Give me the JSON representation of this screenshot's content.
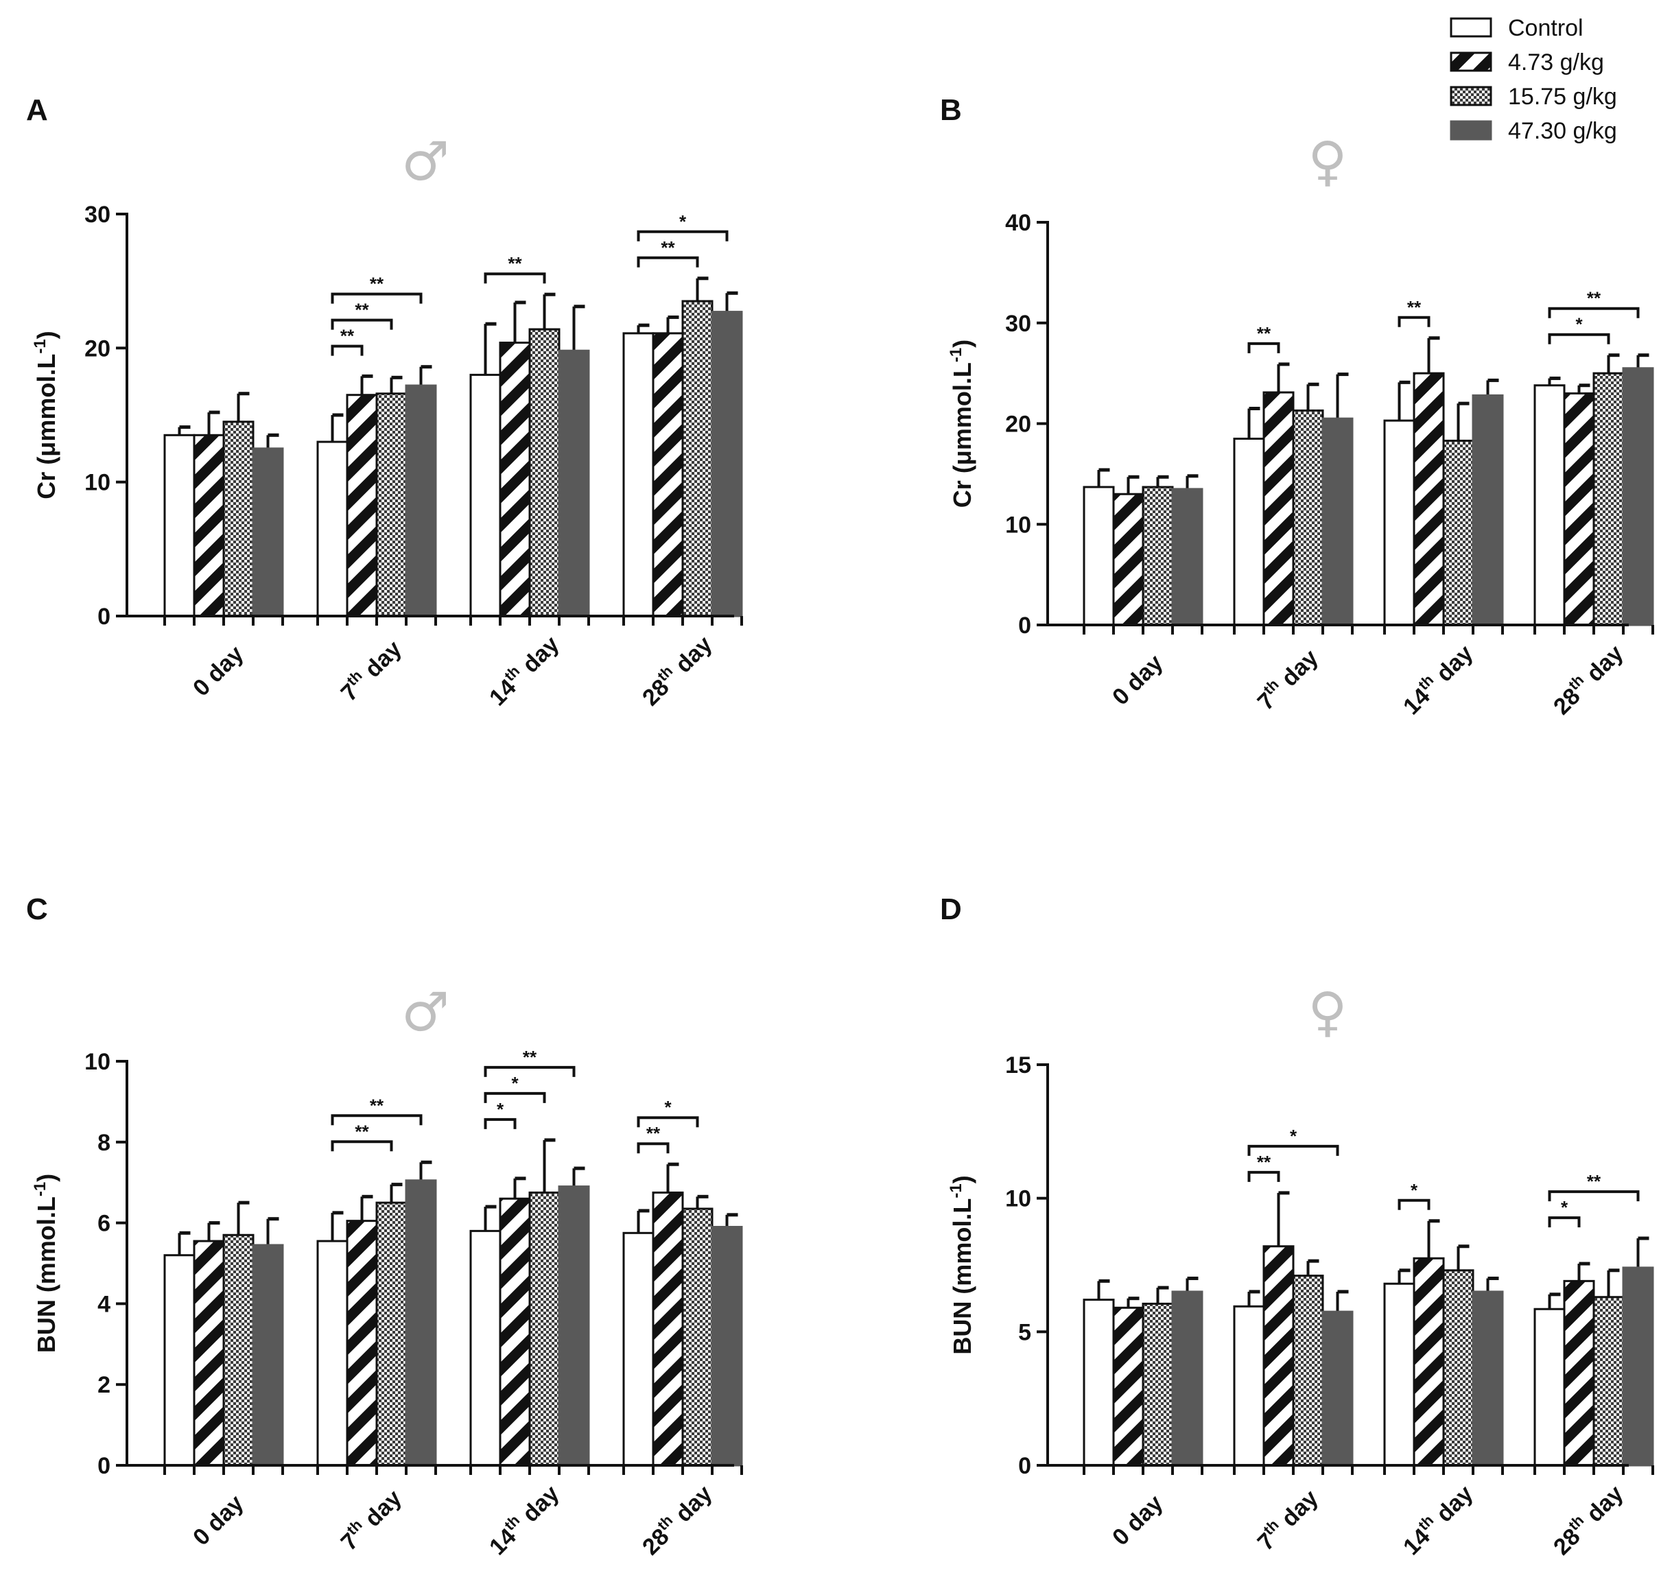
{
  "legend": [
    "Control",
    "4.73 g/kg",
    "15.75 g/kg",
    "47.30 g/kg"
  ],
  "chart_data": [
    {
      "panel": "A",
      "sex_symbol": "♂",
      "type": "bar",
      "ylabel": "Cr (μmmol.L",
      "ylabel_sup": "-1",
      "ylabel_end": ")",
      "ylim": [
        0,
        30
      ],
      "yticks": [
        0,
        10,
        20,
        30
      ],
      "categories": [
        {
          "main": "0 day",
          "sup": "",
          "tail": ""
        },
        {
          "main": "7",
          "sup": "th",
          "tail": " day"
        },
        {
          "main": "14",
          "sup": "th",
          "tail": " day"
        },
        {
          "main": "28",
          "sup": "th",
          "tail": " day"
        }
      ],
      "series": [
        {
          "name": "Control",
          "values": [
            13.5,
            13.0,
            18.0,
            21.1
          ],
          "errors": [
            0.6,
            2.0,
            3.8,
            0.6
          ]
        },
        {
          "name": "4.73 g/kg",
          "values": [
            13.5,
            16.5,
            20.4,
            21.1
          ],
          "errors": [
            1.7,
            1.4,
            3.0,
            1.2
          ]
        },
        {
          "name": "15.75 g/kg",
          "values": [
            14.5,
            16.6,
            21.4,
            23.5
          ],
          "errors": [
            2.1,
            1.2,
            2.6,
            1.7
          ]
        },
        {
          "name": "47.30 g/kg",
          "values": [
            12.5,
            17.2,
            19.8,
            22.7
          ],
          "errors": [
            1.0,
            1.4,
            3.3,
            1.4
          ]
        }
      ],
      "significance": [
        {
          "group": 1,
          "from": 0,
          "to": 1,
          "label": "**"
        },
        {
          "group": 1,
          "from": 0,
          "to": 2,
          "label": "**"
        },
        {
          "group": 1,
          "from": 0,
          "to": 3,
          "label": "**"
        },
        {
          "group": 2,
          "from": 0,
          "to": 2,
          "label": "**"
        },
        {
          "group": 3,
          "from": 0,
          "to": 2,
          "label": "**"
        },
        {
          "group": 3,
          "from": 0,
          "to": 3,
          "label": "*"
        }
      ]
    },
    {
      "panel": "B",
      "sex_symbol": "♀",
      "type": "bar",
      "ylabel": "Cr (μmmol.L",
      "ylabel_sup": "-1",
      "ylabel_end": ")",
      "ylim": [
        0,
        40
      ],
      "yticks": [
        0,
        10,
        20,
        30,
        40
      ],
      "categories": [
        {
          "main": "0 day",
          "sup": "",
          "tail": ""
        },
        {
          "main": "7",
          "sup": "th",
          "tail": " day"
        },
        {
          "main": "14",
          "sup": "th",
          "tail": " day"
        },
        {
          "main": "28",
          "sup": "th",
          "tail": " day"
        }
      ],
      "series": [
        {
          "name": "Control",
          "values": [
            13.7,
            18.5,
            20.3,
            23.8
          ],
          "errors": [
            1.7,
            3.0,
            3.8,
            0.7
          ]
        },
        {
          "name": "4.73 g/kg",
          "values": [
            13.0,
            23.1,
            25.0,
            23.0
          ],
          "errors": [
            1.7,
            2.8,
            3.5,
            0.8
          ]
        },
        {
          "name": "15.75 g/kg",
          "values": [
            13.7,
            21.3,
            18.3,
            25.0
          ],
          "errors": [
            1.0,
            2.6,
            3.7,
            1.8
          ]
        },
        {
          "name": "47.30 g/kg",
          "values": [
            13.5,
            20.5,
            22.8,
            25.5
          ],
          "errors": [
            1.3,
            4.4,
            1.5,
            1.3
          ]
        }
      ],
      "significance": [
        {
          "group": 1,
          "from": 0,
          "to": 1,
          "label": "**"
        },
        {
          "group": 2,
          "from": 0,
          "to": 1,
          "label": "**"
        },
        {
          "group": 3,
          "from": 0,
          "to": 2,
          "label": "*"
        },
        {
          "group": 3,
          "from": 0,
          "to": 3,
          "label": "**"
        }
      ]
    },
    {
      "panel": "C",
      "sex_symbol": "♂",
      "type": "bar",
      "ylabel": "BUN (mmol.L",
      "ylabel_sup": "-1",
      "ylabel_end": ")",
      "ylim": [
        0,
        10
      ],
      "yticks": [
        0,
        2,
        4,
        6,
        8,
        10
      ],
      "categories": [
        {
          "main": "0 day",
          "sup": "",
          "tail": ""
        },
        {
          "main": "7",
          "sup": "th",
          "tail": " day"
        },
        {
          "main": "14",
          "sup": "th",
          "tail": " day"
        },
        {
          "main": "28",
          "sup": "th",
          "tail": " day"
        }
      ],
      "series": [
        {
          "name": "Control",
          "values": [
            5.2,
            5.55,
            5.8,
            5.75
          ],
          "errors": [
            0.55,
            0.7,
            0.6,
            0.55
          ]
        },
        {
          "name": "4.73 g/kg",
          "values": [
            5.55,
            6.05,
            6.6,
            6.75
          ],
          "errors": [
            0.45,
            0.6,
            0.5,
            0.7
          ]
        },
        {
          "name": "15.75 g/kg",
          "values": [
            5.7,
            6.5,
            6.75,
            6.35
          ],
          "errors": [
            0.8,
            0.45,
            1.3,
            0.3
          ]
        },
        {
          "name": "47.30 g/kg",
          "values": [
            5.45,
            7.05,
            6.9,
            5.9
          ],
          "errors": [
            0.65,
            0.45,
            0.45,
            0.3
          ]
        }
      ],
      "significance": [
        {
          "group": 1,
          "from": 0,
          "to": 2,
          "label": "**"
        },
        {
          "group": 1,
          "from": 0,
          "to": 3,
          "label": "**"
        },
        {
          "group": 2,
          "from": 0,
          "to": 1,
          "label": "*"
        },
        {
          "group": 2,
          "from": 0,
          "to": 2,
          "label": "*"
        },
        {
          "group": 2,
          "from": 0,
          "to": 3,
          "label": "**"
        },
        {
          "group": 3,
          "from": 0,
          "to": 1,
          "label": "**"
        },
        {
          "group": 3,
          "from": 0,
          "to": 2,
          "label": "*"
        }
      ]
    },
    {
      "panel": "D",
      "sex_symbol": "♀",
      "type": "bar",
      "ylabel": "BUN (mmol.L",
      "ylabel_sup": "-1",
      "ylabel_end": ")",
      "ylim": [
        0,
        15
      ],
      "yticks": [
        0,
        5,
        10,
        15
      ],
      "categories": [
        {
          "main": "0 day",
          "sup": "",
          "tail": ""
        },
        {
          "main": "7",
          "sup": "th",
          "tail": " day"
        },
        {
          "main": "14",
          "sup": "th",
          "tail": " day"
        },
        {
          "main": "28",
          "sup": "th",
          "tail": " day"
        }
      ],
      "series": [
        {
          "name": "Control",
          "values": [
            6.2,
            5.95,
            6.8,
            5.85
          ],
          "errors": [
            0.7,
            0.55,
            0.5,
            0.55
          ]
        },
        {
          "name": "4.73 g/kg",
          "values": [
            5.9,
            8.2,
            7.75,
            6.9
          ],
          "errors": [
            0.35,
            2.0,
            1.4,
            0.65
          ]
        },
        {
          "name": "15.75 g/kg",
          "values": [
            6.05,
            7.1,
            7.3,
            6.3
          ],
          "errors": [
            0.6,
            0.55,
            0.9,
            1.0
          ]
        },
        {
          "name": "47.30 g/kg",
          "values": [
            6.5,
            5.75,
            6.5,
            7.4
          ],
          "errors": [
            0.5,
            0.75,
            0.5,
            1.1
          ]
        }
      ],
      "significance": [
        {
          "group": 1,
          "from": 0,
          "to": 1,
          "label": "**"
        },
        {
          "group": 1,
          "from": 0,
          "to": 3,
          "label": "*"
        },
        {
          "group": 2,
          "from": 0,
          "to": 1,
          "label": "*"
        },
        {
          "group": 3,
          "from": 0,
          "to": 1,
          "label": "*"
        },
        {
          "group": 3,
          "from": 0,
          "to": 3,
          "label": "**"
        }
      ]
    }
  ]
}
